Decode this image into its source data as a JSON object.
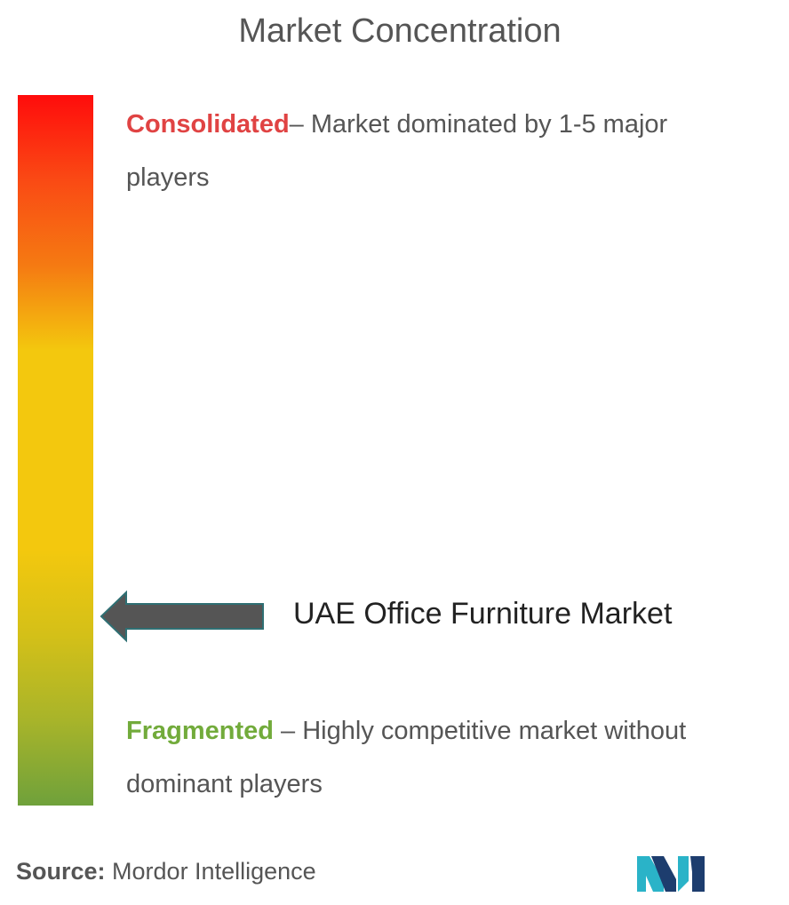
{
  "title": "Market Concentration",
  "scale": {
    "top": {
      "keyword": "Consolidated",
      "description": "– Market dominated by 1-5 major players",
      "color": "#e04343"
    },
    "bottom": {
      "keyword": "Fragmented",
      "description": " – Highly competitive market without dominant players",
      "color": "#72ab3b"
    }
  },
  "marker": {
    "label": "UAE Office Furniture Market"
  },
  "source": {
    "key": "Source:",
    "value": " Mordor Intelligence"
  },
  "logo_icon": "mordor-intelligence-logo",
  "chart_data": {
    "type": "gradient-scale",
    "title": "Market Concentration",
    "scale_ends": [
      "Consolidated",
      "Fragmented"
    ],
    "marker_label": "UAE Office Furniture Market",
    "marker_position": 0.73
  }
}
